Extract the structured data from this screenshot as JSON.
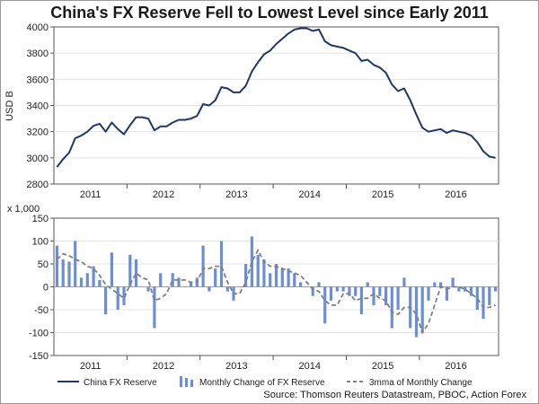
{
  "chart_data": [
    {
      "type": "line",
      "title": "China's FX Reserve Fell to Lowest Level since Early 2011",
      "ylabel": "USD B",
      "ylim": [
        2800,
        4000
      ],
      "yticks": [
        2800,
        3000,
        3200,
        3400,
        3600,
        3800,
        4000
      ],
      "year_labels": [
        "2011",
        "2012",
        "2013",
        "2014",
        "2015",
        "2016"
      ],
      "x_start": "2011-01",
      "series": [
        {
          "name": "China FX Reserve",
          "color": "#1f3864",
          "values": [
            2930,
            2990,
            3040,
            3150,
            3170,
            3200,
            3245,
            3260,
            3200,
            3270,
            3220,
            3180,
            3250,
            3310,
            3310,
            3300,
            3210,
            3240,
            3240,
            3270,
            3290,
            3290,
            3300,
            3320,
            3410,
            3400,
            3440,
            3540,
            3530,
            3500,
            3500,
            3550,
            3660,
            3730,
            3790,
            3820,
            3870,
            3910,
            3950,
            3980,
            3990,
            3990,
            3970,
            3980,
            3890,
            3860,
            3850,
            3840,
            3820,
            3800,
            3740,
            3750,
            3710,
            3690,
            3650,
            3560,
            3510,
            3530,
            3440,
            3330,
            3230,
            3200,
            3210,
            3220,
            3190,
            3210,
            3200,
            3190,
            3170,
            3120,
            3050,
            3010,
            3000
          ]
        }
      ]
    },
    {
      "type": "bar",
      "ylabel": "x 1,000",
      "ylim": [
        -150,
        150
      ],
      "yticks": [
        -150,
        -100,
        -50,
        0,
        50,
        100,
        150
      ],
      "year_labels": [
        "2011",
        "2012",
        "2013",
        "2014",
        "2015",
        "2016"
      ],
      "x_start": "2011-01",
      "series": [
        {
          "name": "Monthly Change of FX Reserve",
          "type": "bar",
          "color": "#6b8ed6",
          "values": [
            90,
            60,
            55,
            100,
            20,
            30,
            45,
            15,
            -60,
            75,
            -50,
            -40,
            70,
            60,
            0,
            -10,
            -90,
            30,
            0,
            30,
            20,
            0,
            10,
            20,
            90,
            -10,
            40,
            100,
            -10,
            -30,
            0,
            50,
            110,
            70,
            60,
            30,
            50,
            40,
            40,
            30,
            10,
            0,
            -20,
            10,
            -80,
            -30,
            -10,
            -10,
            -20,
            -20,
            -60,
            10,
            -40,
            -20,
            -40,
            -90,
            -50,
            20,
            -90,
            -110,
            -100,
            -30,
            10,
            10,
            -30,
            20,
            -10,
            -10,
            -20,
            -50,
            -70,
            -40,
            -10
          ]
        },
        {
          "name": "3mma of Monthly Change",
          "type": "line",
          "color": "#808080",
          "values": [
            60,
            72,
            68,
            60,
            55,
            45,
            40,
            25,
            5,
            -5,
            -15,
            -25,
            5,
            30,
            20,
            15,
            -30,
            -25,
            -15,
            15,
            15,
            15,
            10,
            10,
            40,
            40,
            45,
            45,
            10,
            -15,
            -15,
            10,
            55,
            80,
            55,
            45,
            45,
            40,
            35,
            30,
            25,
            10,
            -5,
            -10,
            -30,
            -40,
            -40,
            -15,
            -15,
            -30,
            -25,
            -25,
            -15,
            -25,
            -30,
            -55,
            -60,
            -45,
            -45,
            -60,
            -100,
            -80,
            -40,
            0,
            -5,
            0,
            0,
            -5,
            -15,
            -25,
            -45,
            -45,
            -40
          ]
        }
      ]
    }
  ],
  "legend": {
    "reserve": "China FX Reserve",
    "monthly": "Monthly Change of FX Reserve",
    "mma": "3mma of Monthly Change"
  },
  "source": "Source: Thomson Reuters Datastream, PBOC, Action Forex"
}
